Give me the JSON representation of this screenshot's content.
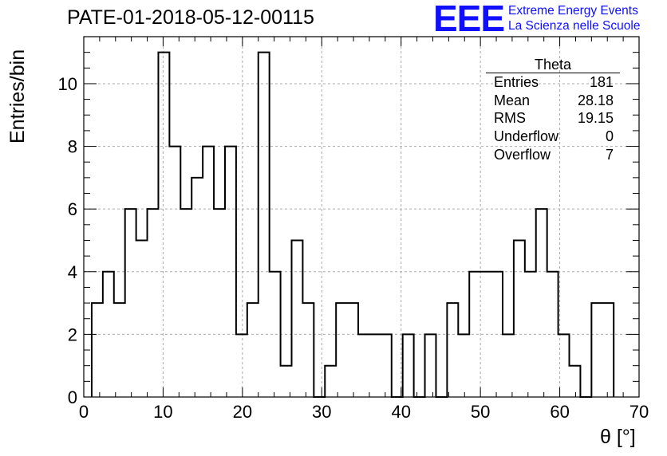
{
  "title": "PATE-01-2018-05-12-00115",
  "logo": {
    "mark": "EEE",
    "line1": "Extreme Energy Events",
    "line2": "La Scienza nelle Scuole",
    "color": "#1010ff"
  },
  "stats_box": {
    "name": "Theta",
    "rows": [
      {
        "label": "Entries",
        "value": "181"
      },
      {
        "label": "Mean",
        "value": "28.18"
      },
      {
        "label": "RMS",
        "value": "19.15"
      },
      {
        "label": "Underflow",
        "value": "0"
      },
      {
        "label": "Overflow",
        "value": "7"
      }
    ]
  },
  "chart_data": {
    "type": "histogram",
    "xlabel": "θ [°]",
    "ylabel": "Entries/bin",
    "xlim": [
      0,
      70
    ],
    "ylim": [
      0,
      11.5
    ],
    "bin_width": 1.4,
    "bin_start": 1.0,
    "values": [
      3,
      4,
      3,
      6,
      5,
      6,
      11,
      8,
      6,
      7,
      8,
      6,
      8,
      2,
      3,
      11,
      4,
      1,
      5,
      3,
      0,
      1,
      3,
      3,
      2,
      2,
      2,
      0,
      2,
      0,
      2,
      0,
      3,
      2,
      4,
      4,
      4,
      2,
      5,
      4,
      6,
      4,
      2,
      1,
      0,
      3,
      3
    ],
    "x_ticks": [
      0,
      10,
      20,
      30,
      40,
      50,
      60,
      70
    ],
    "y_ticks": [
      0,
      2,
      4,
      6,
      8,
      10
    ],
    "grid": true,
    "line_color": "#000000"
  }
}
